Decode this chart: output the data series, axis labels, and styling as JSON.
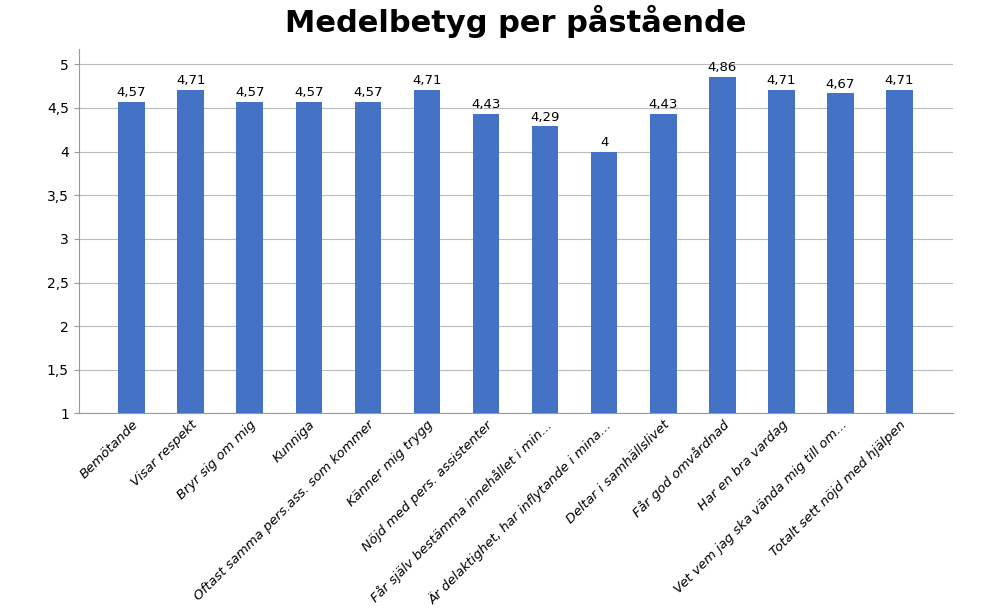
{
  "title": "Medelbetyg per påstående",
  "categories": [
    "Bemötande",
    "Visar respekt",
    "Bryr sig om mig",
    "Kunniga",
    "Oftast samma pers.ass. som kommer",
    "Känner mig trygg",
    "Nöjd med pers. assistenter",
    "Får själv bestämma innehållet i min...",
    "Är delaktighet, har inflytande i mina...",
    "Deltar i samhällslivet",
    "Får god omvårdnad",
    "Har en bra vardag",
    "Vet vem jag ska vända mig till om...",
    "Totalt sett nöjd med hjälpen"
  ],
  "values": [
    4.57,
    4.71,
    4.57,
    4.57,
    4.57,
    4.71,
    4.43,
    4.29,
    4.0,
    4.43,
    4.86,
    4.71,
    4.67,
    4.71
  ],
  "bar_color": "#4472C4",
  "ylim_min": 1,
  "ylim_max": 5,
  "yticks": [
    1,
    1.5,
    2,
    2.5,
    3,
    3.5,
    4,
    4.5,
    5
  ],
  "title_fontsize": 22,
  "label_fontsize": 9.5,
  "value_fontsize": 9.5,
  "tick_fontsize": 10,
  "background_color": "#FFFFFF",
  "grid_color": "#BBBBBB",
  "bar_width": 0.45
}
